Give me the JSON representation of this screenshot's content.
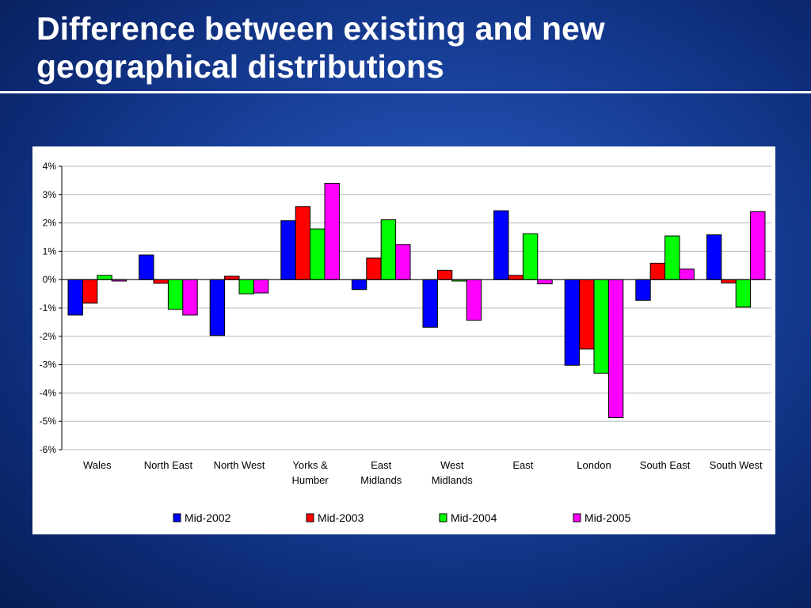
{
  "slide": {
    "title_line1": "Difference between existing and new",
    "title_line2": "geographical distributions"
  },
  "chart_data": {
    "type": "bar",
    "categories": [
      [
        "Wales"
      ],
      [
        "North East"
      ],
      [
        "North West"
      ],
      [
        "Yorks &",
        "Humber"
      ],
      [
        "East",
        "Midlands"
      ],
      [
        "West",
        "Midlands"
      ],
      [
        "East"
      ],
      [
        "London"
      ],
      [
        "South East"
      ],
      [
        "South West"
      ]
    ],
    "series": [
      {
        "name": "Mid-2002",
        "color": "#0000ff",
        "values": [
          -1.25,
          0.87,
          -1.97,
          2.08,
          -0.35,
          -1.68,
          2.43,
          -3.02,
          -0.73,
          1.58
        ]
      },
      {
        "name": "Mid-2003",
        "color": "#ff0000",
        "values": [
          -0.83,
          -0.13,
          0.12,
          2.58,
          0.76,
          0.33,
          0.15,
          -2.45,
          0.58,
          -0.12
        ]
      },
      {
        "name": "Mid-2004",
        "color": "#00ff00",
        "values": [
          0.15,
          -1.05,
          -0.5,
          1.79,
          2.11,
          -0.05,
          1.62,
          -3.3,
          1.54,
          -0.97
        ]
      },
      {
        "name": "Mid-2005",
        "color": "#ff00ff",
        "values": [
          -0.05,
          -1.25,
          -0.47,
          3.4,
          1.24,
          -1.43,
          -0.15,
          -4.87,
          0.37,
          2.4
        ]
      }
    ],
    "y_ticks": [
      "4%",
      "3%",
      "2%",
      "1%",
      "0%",
      "-1%",
      "-2%",
      "-3%",
      "-4%",
      "-5%",
      "-6%"
    ],
    "ylim": [
      -6,
      4
    ],
    "y_unit": "percent",
    "grid": true,
    "legend_position": "bottom"
  }
}
